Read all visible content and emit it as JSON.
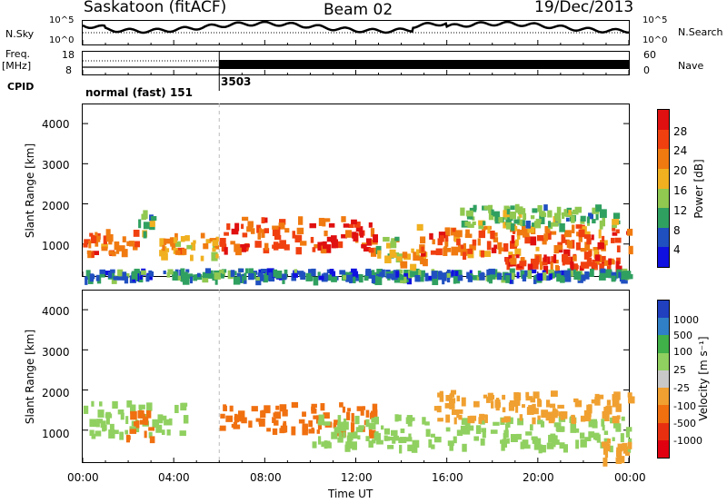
{
  "header": {
    "station": "Saskatoon (fitACF)",
    "beam": "Beam 02",
    "date": "19/Dec/2013"
  },
  "top_panel": {
    "left_label": "N.Sky",
    "right_label": "N.Search",
    "yticks": [
      "10^5",
      "10^0"
    ]
  },
  "freq_panel": {
    "left_label_1": "Freq.",
    "left_label_2": "[MHz]",
    "right_label": "Nave",
    "left_ticks": [
      "18",
      "8"
    ],
    "right_ticks": [
      "60",
      "0"
    ]
  },
  "cpid": {
    "label": "CPID",
    "programs": [
      {
        "name": "normal (fast) 151",
        "start_hour": 0
      },
      {
        "name": "3503",
        "start_hour": 6
      }
    ]
  },
  "power_panel": {
    "ylabel": "Slant Range [km]",
    "yticks": [
      "1000",
      "2000",
      "3000",
      "4000"
    ],
    "colorbar_label": "Power [dB]",
    "colorbar_ticks": [
      "28",
      "24",
      "20",
      "16",
      "12",
      "8",
      "4"
    ],
    "colors": [
      "#e01010",
      "#f04010",
      "#f07a10",
      "#f0b020",
      "#90c850",
      "#30a060",
      "#2050c0",
      "#1010e0"
    ]
  },
  "velocity_panel": {
    "ylabel": "Slant Range [km]",
    "yticks": [
      "1000",
      "2000",
      "3000",
      "4000"
    ],
    "colorbar_label": "Velocity [m s⁻¹]",
    "colorbar_ticks": [
      "1000",
      "500",
      "100",
      "25",
      "-25",
      "-100",
      "-500",
      "-1000"
    ],
    "colors": [
      "#2040c0",
      "#3080c8",
      "#40b048",
      "#90d060",
      "#c8c8c8",
      "#f0a030",
      "#f07010",
      "#e83010",
      "#e00010"
    ]
  },
  "xaxis": {
    "label": "Time UT",
    "ticks": [
      "00:00",
      "04:00",
      "08:00",
      "12:00",
      "16:00",
      "20:00",
      "00:00"
    ]
  },
  "chart_data": {
    "type": "heatmap",
    "x_range_hours": [
      0,
      24
    ],
    "y_range_km": [
      180,
      4500
    ],
    "power_regions": [
      {
        "t0": 0.0,
        "t1": 2.3,
        "r0": 800,
        "r1": 1400,
        "level": 24
      },
      {
        "t0": 2.3,
        "t1": 3.0,
        "r0": 1300,
        "r1": 1900,
        "level": 12
      },
      {
        "t0": 3.2,
        "t1": 6.0,
        "r0": 700,
        "r1": 1300,
        "level": 20
      },
      {
        "t0": 6.0,
        "t1": 12.8,
        "r0": 900,
        "r1": 1700,
        "level": 26
      },
      {
        "t0": 12.8,
        "t1": 13.8,
        "r0": 700,
        "r1": 1300,
        "level": 16
      },
      {
        "t0": 13.8,
        "t1": 15.0,
        "r0": 500,
        "r1": 900,
        "level": 20
      },
      {
        "t0": 14.5,
        "t1": 24.0,
        "r0": 800,
        "r1": 1500,
        "level": 24
      },
      {
        "t0": 18.5,
        "t1": 23.5,
        "r0": 450,
        "r1": 750,
        "level": 26
      },
      {
        "t0": 16.5,
        "t1": 23.5,
        "r0": 1500,
        "r1": 2000,
        "level": 12
      },
      {
        "t0": 0.0,
        "t1": 24.0,
        "r0": 180,
        "r1": 400,
        "level": 8
      }
    ],
    "velocity_regions": [
      {
        "t0": 0.0,
        "t1": 4.5,
        "r0": 900,
        "r1": 1800,
        "level": 25
      },
      {
        "t0": 1.8,
        "t1": 3.0,
        "r0": 800,
        "r1": 1500,
        "level": -500
      },
      {
        "t0": 6.0,
        "t1": 12.8,
        "r0": 1000,
        "r1": 1700,
        "level": -500
      },
      {
        "t0": 10.0,
        "t1": 24.0,
        "r0": 600,
        "r1": 1400,
        "level": 25
      },
      {
        "t0": 15.0,
        "t1": 24.0,
        "r0": 1300,
        "r1": 2000,
        "level": -100
      },
      {
        "t0": 22.5,
        "t1": 24.0,
        "r0": 300,
        "r1": 800,
        "level": -100
      }
    ]
  }
}
